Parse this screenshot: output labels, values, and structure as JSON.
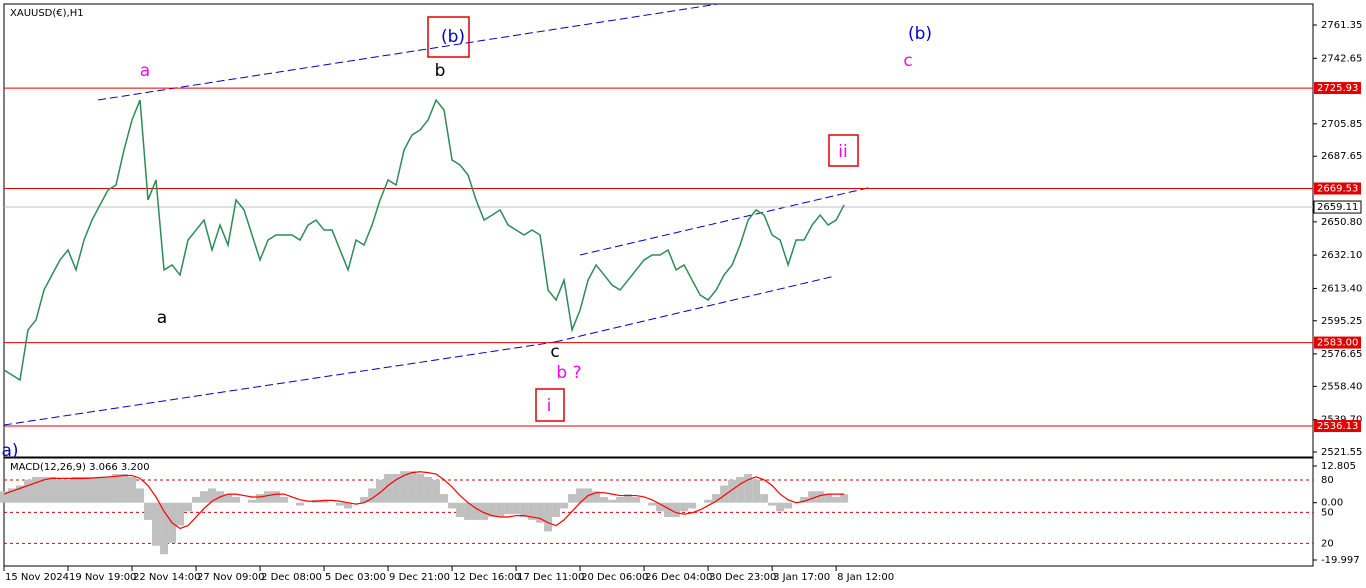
{
  "chart_data": [
    {
      "type": "line",
      "title": "XAUUSD(€),H1",
      "color": "#2e8b57",
      "xlim": [
        0,
        163.6
      ],
      "xticks": [
        {
          "value": 0,
          "label": "15 Nov 2024"
        },
        {
          "value": 8,
          "label": "19 Nov 19:00"
        },
        {
          "value": 16,
          "label": "22 Nov 14:00"
        },
        {
          "value": 24,
          "label": "27 Nov 09:00"
        },
        {
          "value": 32,
          "label": "2 Dec 08:00"
        },
        {
          "value": 40,
          "label": "5 Dec 03:00"
        },
        {
          "value": 48,
          "label": "9 Dec 21:00"
        },
        {
          "value": 56,
          "label": "12 Dec 16:00"
        },
        {
          "value": 64,
          "label": "17 Dec 11:00"
        },
        {
          "value": 72,
          "label": "20 Dec 06:00"
        },
        {
          "value": 80,
          "label": "26 Dec 04:00"
        },
        {
          "value": 88,
          "label": "30 Dec 23:00"
        },
        {
          "value": 96,
          "label": "3 Jan 17:00"
        },
        {
          "value": 104,
          "label": "8 Jan 12:00"
        }
      ],
      "ylim": [
        2518.74,
        2773.14
      ],
      "yticks": [
        2761.35,
        2742.65,
        2705.85,
        2687.65,
        {
          "value": 2650.8,
          "label": "2650.80"
        },
        {
          "value": 2632.1,
          "label": "2632.10"
        },
        {
          "value": 2613.4,
          "label": "2613.40"
        },
        2595.25,
        2576.65,
        {
          "value": 2558.4,
          "label": "2558.40"
        },
        {
          "value": 2539.7,
          "label": "2539.70"
        },
        2521.55
      ],
      "levels": [
        2725.93,
        2669.53,
        {
          "value": 2583,
          "label": "2583.00"
        },
        2536.13
      ],
      "current_price": 2659.11,
      "values": [
        2567.6,
        2564.8,
        2562.0,
        2590.1,
        2595.7,
        2612.5,
        2621.0,
        2629.4,
        2635.0,
        2623.8,
        2640.6,
        2651.8,
        2660.3,
        2668.7,
        2671.5,
        2691.2,
        2708.0,
        2719.2,
        2663.1,
        2674.3,
        2623.8,
        2626.6,
        2621.0,
        2640.6,
        2646.2,
        2651.8,
        2635.0,
        2649.0,
        2637.8,
        2663.1,
        2657.5,
        2643.4,
        2629.4,
        2640.6,
        2643.4,
        2643.4,
        2643.4,
        2640.6,
        2649.0,
        2651.8,
        2646.2,
        2646.2,
        2635.0,
        2623.8,
        2640.6,
        2637.8,
        2649.0,
        2663.1,
        2674.3,
        2671.5,
        2691.2,
        2699.6,
        2702.4,
        2708.0,
        2719.2,
        2713.6,
        2685.5,
        2682.7,
        2677.1,
        2663.1,
        2651.8,
        2654.6,
        2657.5,
        2649.0,
        2646.2,
        2643.4,
        2646.2,
        2643.4,
        2612.5,
        2606.9,
        2618.1,
        2590.1,
        2601.3,
        2618.1,
        2626.6,
        2621.0,
        2615.3,
        2612.5,
        2618.1,
        2623.8,
        2629.4,
        2632.2,
        2632.2,
        2635.0,
        2623.8,
        2626.6,
        2618.1,
        2609.7,
        2606.9,
        2612.5,
        2621.0,
        2626.6,
        2637.8,
        2651.8,
        2657.5,
        2654.6,
        2643.4,
        2640.6,
        2626.6,
        2640.6,
        2640.6,
        2649.0,
        2654.6,
        2649.0,
        2651.8,
        2660.3
      ],
      "annotations": [
        "a",
        "(b)",
        "b",
        "(b)",
        "c",
        "ii",
        "a",
        "c",
        "b ?",
        "i",
        "a)"
      ]
    },
    {
      "type": "macd",
      "title": "MACD(12,26,9) 3.066 3.200",
      "ylim": [
        -22.09,
        15.6
      ],
      "yticks": [
        12.805,
        {
          "value": 0,
          "label": "0.00"
        },
        -19.997
      ],
      "levels": [
        {
          "value": 7.92,
          "label": "80"
        },
        {
          "value": -3.36,
          "label": "50"
        },
        {
          "value": -14.18,
          "label": "20"
        }
      ],
      "series": [
        {
          "color": "#c0c0c0",
          "values": [
            4,
            5,
            6,
            8,
            9,
            9,
            9,
            8,
            8,
            9,
            9,
            9,
            9,
            9,
            10,
            10,
            9,
            5,
            -6,
            -15,
            -18,
            -14,
            -8,
            -3,
            2,
            4,
            5,
            4,
            3,
            2,
            0,
            1,
            3,
            4,
            4,
            2,
            0,
            -1,
            0,
            1,
            1,
            0,
            -1,
            -2,
            0,
            2,
            5,
            8,
            10,
            10,
            11,
            11,
            10,
            9,
            8,
            3,
            -2,
            -5,
            -6,
            -6,
            -6,
            -5,
            -5,
            -4,
            -4,
            -5,
            -6,
            -7,
            -10,
            -5,
            -2,
            3,
            5,
            5,
            4,
            2,
            1,
            2,
            3,
            2,
            0,
            -1,
            -3,
            -5,
            -5,
            -3,
            -2,
            0,
            1,
            3,
            6,
            8,
            9,
            10,
            8,
            3,
            -1,
            -3,
            -2,
            0,
            2,
            4,
            4,
            3,
            2,
            3
          ]
        },
        {
          "color": "#ff0000",
          "values": [
            3,
            4,
            5,
            6,
            7,
            8,
            8.5,
            8.5,
            8.5,
            8.5,
            8.5,
            8.6,
            8.8,
            9,
            9.2,
            9.5,
            9.5,
            8.5,
            6,
            2,
            -3,
            -7,
            -9,
            -8,
            -5,
            -2,
            0.5,
            2,
            3,
            3,
            2.5,
            2,
            2,
            2.5,
            3,
            3,
            2,
            1,
            0.5,
            0.5,
            0.8,
            0.8,
            0.5,
            0,
            -0.5,
            0,
            1.5,
            3.5,
            6,
            8,
            9.5,
            10.5,
            10.8,
            10.5,
            10,
            8,
            5.5,
            2.5,
            0,
            -2,
            -3.5,
            -4.5,
            -5,
            -5,
            -4.5,
            -4.5,
            -5,
            -5.5,
            -7,
            -8,
            -6,
            -3,
            0,
            2.5,
            3.5,
            3.5,
            3,
            2.5,
            2.5,
            2.5,
            2,
            1,
            -0.5,
            -2,
            -3.5,
            -4,
            -3.5,
            -2.5,
            -1,
            0.5,
            2.5,
            4.5,
            6.5,
            8,
            9,
            8,
            6,
            3,
            1,
            0,
            0.5,
            1.5,
            2.5,
            3,
            3,
            3
          ]
        }
      ]
    }
  ]
}
